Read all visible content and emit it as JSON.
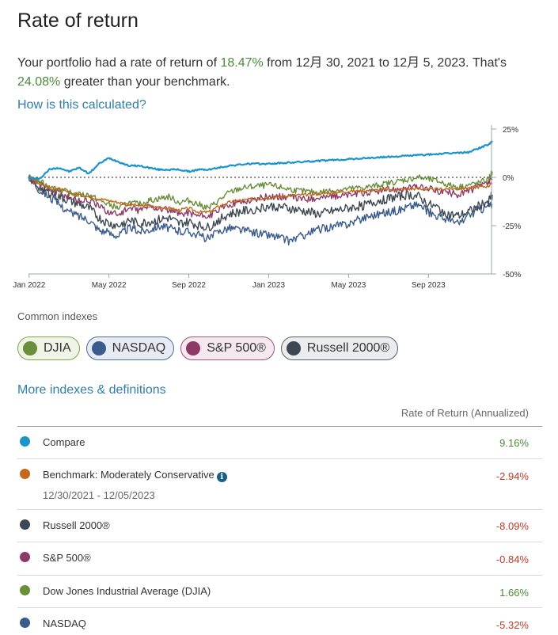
{
  "page": {
    "title": "Rate of return",
    "summary_pre": "Your portfolio had a rate of return of ",
    "summary_rate": "18.47%",
    "summary_mid": " from 12月 30, 2021 to 12月 5, 2023. That's ",
    "summary_diff": "24.08%",
    "summary_post": " greater than your benchmark.",
    "how_link": "How is this calculated?",
    "common_indexes_label": "Common indexes",
    "more_link": "More indexes & definitions",
    "ror_header": "Rate of Return (Annualized)"
  },
  "chips": [
    {
      "label": "DJIA",
      "color": "#6a8e3a",
      "border": "#7fa44f",
      "bg": "#eef4e6"
    },
    {
      "label": "NASDAQ",
      "color": "#3b5b8c",
      "border": "#4d6a99",
      "bg": "#e7ecf4"
    },
    {
      "label": "S&P 500®",
      "color": "#8e3a66",
      "border": "#a0507a",
      "bg": "#f6e8ef"
    },
    {
      "label": "Russell 2000®",
      "color": "#3d4852",
      "border": "#556069",
      "bg": "#eaecee"
    }
  ],
  "table_rows": [
    {
      "name": "Compare",
      "value": "9.16%",
      "color": "#1a94cc",
      "trend": "up"
    },
    {
      "name": "Benchmark: Moderately Conservative",
      "info": "i",
      "sub": "12/30/2021 - 12/05/2023",
      "value": "-2.94%",
      "color": "#c26a1c",
      "trend": "down"
    },
    {
      "name": "Russell 2000®",
      "value": "-8.09%",
      "color": "#3d4852",
      "trend": "down"
    },
    {
      "name": "S&P 500®",
      "value": "-0.84%",
      "color": "#8e3a66",
      "trend": "down"
    },
    {
      "name": "Dow Jones Industrial Average (DJIA)",
      "value": "1.66%",
      "color": "#6a8e3a",
      "trend": "up"
    },
    {
      "name": "NASDAQ",
      "value": "-5.32%",
      "color": "#3b5b8c",
      "trend": "down"
    }
  ],
  "chart_data": {
    "type": "line",
    "title": "",
    "xlabel": "",
    "ylabel": "",
    "ylim": [
      -50,
      25
    ],
    "y_ticks": [
      "25%",
      "0%",
      "-25%",
      "-50%"
    ],
    "y_tick_values": [
      25,
      0,
      -25,
      -50
    ],
    "x_ticks": [
      "Jan 2022",
      "May 2022",
      "Sep 2022",
      "Jan 2023",
      "May 2023",
      "Sep 2023"
    ],
    "x_tick_values": [
      1,
      5,
      9,
      13,
      17,
      21
    ],
    "x_domain": [
      0.97,
      24.2
    ],
    "x": [
      0.97,
      1.5,
      2,
      2.5,
      3,
      3.5,
      4,
      4.5,
      5,
      5.5,
      6,
      6.5,
      7,
      7.5,
      8,
      8.5,
      9,
      9.5,
      10,
      10.5,
      11,
      11.5,
      12,
      12.5,
      13,
      13.5,
      14,
      14.5,
      15,
      15.5,
      16,
      16.5,
      17,
      17.5,
      18,
      18.5,
      19,
      19.5,
      20,
      20.5,
      21,
      21.5,
      22,
      22.5,
      23,
      23.5,
      24,
      24.2
    ],
    "series": [
      {
        "name": "Compare",
        "color": "#1a94cc",
        "width": 2.2,
        "noise": 0.4,
        "values": [
          0,
          -1,
          4,
          5,
          3,
          5,
          2,
          7,
          10,
          8,
          6,
          6,
          5,
          4,
          4,
          4,
          3,
          4,
          4,
          5,
          6,
          6.5,
          7,
          7,
          7,
          7.3,
          7.6,
          7.9,
          8.2,
          8.5,
          8.8,
          9.1,
          9.4,
          9.7,
          10,
          10.3,
          10.6,
          10.9,
          11.2,
          11.5,
          11.8,
          12.1,
          12.4,
          12.7,
          13,
          15,
          17,
          18.5
        ]
      },
      {
        "name": "Benchmark: Moderately Conservative",
        "color": "#c26a1c",
        "width": 1.4,
        "noise": 0.8,
        "values": [
          0,
          -3,
          -5,
          -6,
          -8,
          -9,
          -10,
          -11,
          -12,
          -13,
          -14,
          -14.5,
          -15,
          -15.5,
          -16,
          -17,
          -16,
          -18,
          -18,
          -15,
          -13,
          -12,
          -11.5,
          -11,
          -10.5,
          -10,
          -9.5,
          -9.2,
          -9,
          -8.5,
          -8,
          -7.6,
          -7.2,
          -7,
          -6.8,
          -6.6,
          -6.4,
          -6.2,
          -6,
          -5.8,
          -6.5,
          -6.2,
          -5.8,
          -6,
          -5.4,
          -5,
          -4.5,
          -3
        ]
      },
      {
        "name": "Russell 2000®",
        "color": "#3d4852",
        "width": 1.4,
        "noise": 2.4,
        "values": [
          0,
          -5,
          -8,
          -10,
          -12,
          -14,
          -16,
          -21,
          -24,
          -25,
          -22,
          -24,
          -23,
          -22,
          -21,
          -24,
          -23,
          -25,
          -26,
          -22,
          -19,
          -18,
          -17,
          -16,
          -15,
          -15,
          -16,
          -17,
          -18,
          -19,
          -18,
          -17,
          -16,
          -15,
          -14,
          -12,
          -11,
          -10,
          -9,
          -10,
          -14,
          -16,
          -19,
          -20,
          -18,
          -15,
          -12,
          -9
        ]
      },
      {
        "name": "S&P 500®",
        "color": "#8e3a66",
        "width": 1.4,
        "noise": 1.8,
        "values": [
          0,
          -3,
          -6,
          -8,
          -10,
          -12,
          -12,
          -15,
          -18,
          -19,
          -16,
          -17,
          -15,
          -16,
          -17,
          -19,
          -18,
          -20,
          -20,
          -17,
          -14,
          -13,
          -12,
          -11,
          -10,
          -10,
          -10,
          -11,
          -11,
          -10.5,
          -10,
          -9.5,
          -9,
          -8.5,
          -8,
          -7,
          -6.5,
          -6,
          -5.5,
          -5,
          -6,
          -7,
          -8,
          -9,
          -7,
          -5,
          -3,
          -1
        ]
      },
      {
        "name": "Dow Jones Industrial Average (DJIA)",
        "color": "#6a8e3a",
        "width": 1.4,
        "noise": 1.6,
        "values": [
          0,
          -2,
          -5,
          -6,
          -8,
          -9,
          -9,
          -12,
          -14,
          -16,
          -13,
          -14,
          -12,
          -11,
          -10,
          -13,
          -12,
          -14,
          -16,
          -12,
          -8,
          -6,
          -5,
          -4.5,
          -4,
          -5,
          -6,
          -7,
          -7.5,
          -7.8,
          -7,
          -6.5,
          -6,
          -5.5,
          -5,
          -4,
          -3,
          -2,
          -1,
          0,
          -1,
          -2,
          -4,
          -5,
          -4,
          -3,
          -1,
          3
        ]
      },
      {
        "name": "NASDAQ",
        "color": "#3b5b8c",
        "width": 1.4,
        "noise": 2.2,
        "values": [
          0,
          -6,
          -10,
          -14,
          -18,
          -20,
          -22,
          -27,
          -29,
          -30,
          -26,
          -28,
          -27,
          -25,
          -26,
          -28,
          -28,
          -30,
          -32,
          -28,
          -26,
          -27,
          -28,
          -29,
          -30,
          -31,
          -33,
          -31,
          -29,
          -27,
          -26,
          -25,
          -24,
          -22,
          -20,
          -19,
          -18,
          -17,
          -15,
          -14,
          -18,
          -20,
          -22,
          -24,
          -20,
          -17,
          -15,
          -14
        ]
      }
    ]
  }
}
